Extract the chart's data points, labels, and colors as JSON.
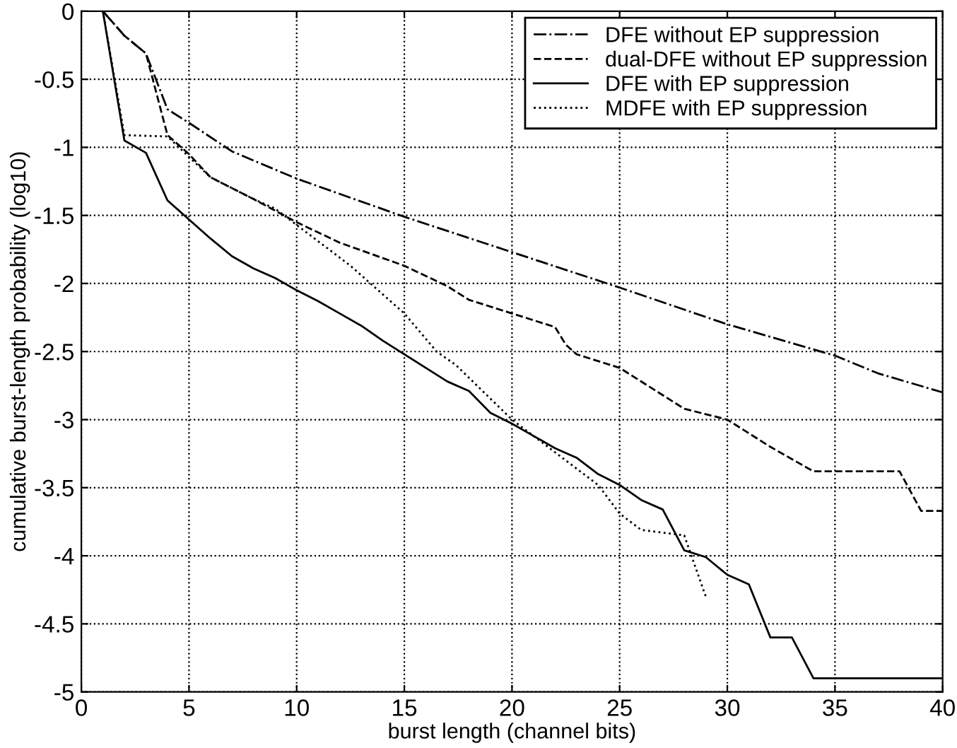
{
  "chart_data": {
    "type": "line",
    "xlabel": "burst length (channel bits)",
    "ylabel": "cumulative burst-length probability (log10)",
    "xlim": [
      0,
      40
    ],
    "xticks": [
      0,
      5,
      10,
      15,
      20,
      25,
      30,
      35,
      40
    ],
    "ylim": [
      -5,
      0
    ],
    "yticks": [
      -5,
      -4.5,
      -4,
      -3.5,
      -3,
      -2.5,
      -2,
      -1.5,
      -1,
      -0.5,
      0
    ],
    "grid": true,
    "legend": "top right",
    "marker": "none",
    "series": [
      {
        "name": "DFE without EP suppression",
        "color": "#000000",
        "line_style": "dashdot",
        "x": [
          1,
          2,
          3,
          4,
          5,
          7,
          10,
          15,
          20,
          25,
          30,
          35,
          37,
          40
        ],
        "values": [
          0,
          -0.18,
          -0.31,
          -0.72,
          -0.82,
          -1.03,
          -1.23,
          -1.51,
          -1.77,
          -2.03,
          -2.3,
          -2.53,
          -2.66,
          -2.8
        ]
      },
      {
        "name": "dual-DFE without EP suppression",
        "color": "#000000",
        "line_style": "dashed",
        "x": [
          1,
          2,
          3,
          4,
          5,
          6,
          8,
          10,
          12,
          15,
          17,
          18,
          20,
          22,
          22.5,
          23,
          25,
          28,
          30,
          32,
          34,
          38,
          39,
          40
        ],
        "values": [
          0,
          -0.18,
          -0.31,
          -0.91,
          -1.05,
          -1.22,
          -1.38,
          -1.55,
          -1.7,
          -1.87,
          -2.02,
          -2.12,
          -2.22,
          -2.32,
          -2.45,
          -2.52,
          -2.62,
          -2.92,
          -3.0,
          -3.2,
          -3.38,
          -3.38,
          -3.67,
          -3.67
        ]
      },
      {
        "name": "DFE with EP suppression",
        "color": "#000000",
        "line_style": "solid",
        "x": [
          1,
          2,
          3,
          4,
          5,
          6,
          7,
          8,
          9,
          10,
          11,
          12,
          13,
          14,
          15,
          16,
          17,
          18,
          19,
          20,
          21,
          22,
          23,
          24,
          25,
          26,
          27,
          28,
          29,
          30,
          31,
          32,
          33,
          34,
          40
        ],
        "values": [
          0,
          -0.95,
          -1.04,
          -1.39,
          -1.53,
          -1.67,
          -1.8,
          -1.89,
          -1.96,
          -2.05,
          -2.13,
          -2.22,
          -2.31,
          -2.42,
          -2.52,
          -2.62,
          -2.72,
          -2.79,
          -2.95,
          -3.03,
          -3.12,
          -3.21,
          -3.28,
          -3.4,
          -3.48,
          -3.59,
          -3.66,
          -3.96,
          -4.01,
          -4.14,
          -4.21,
          -4.6,
          -4.6,
          -4.9,
          -4.9
        ]
      },
      {
        "name": "MDFE with EP suppression",
        "color": "#000000",
        "line_style": "dotted",
        "x": [
          1,
          2,
          4,
          5,
          6,
          7,
          8,
          9,
          10,
          12.5,
          15,
          16.5,
          17.4,
          20,
          22,
          24,
          25,
          26,
          27,
          28,
          29
        ],
        "values": [
          0,
          -0.91,
          -0.92,
          -1.07,
          -1.22,
          -1.3,
          -1.38,
          -1.45,
          -1.57,
          -1.87,
          -2.22,
          -2.5,
          -2.6,
          -3.0,
          -3.24,
          -3.48,
          -3.69,
          -3.81,
          -3.83,
          -3.85,
          -4.3
        ]
      }
    ]
  }
}
